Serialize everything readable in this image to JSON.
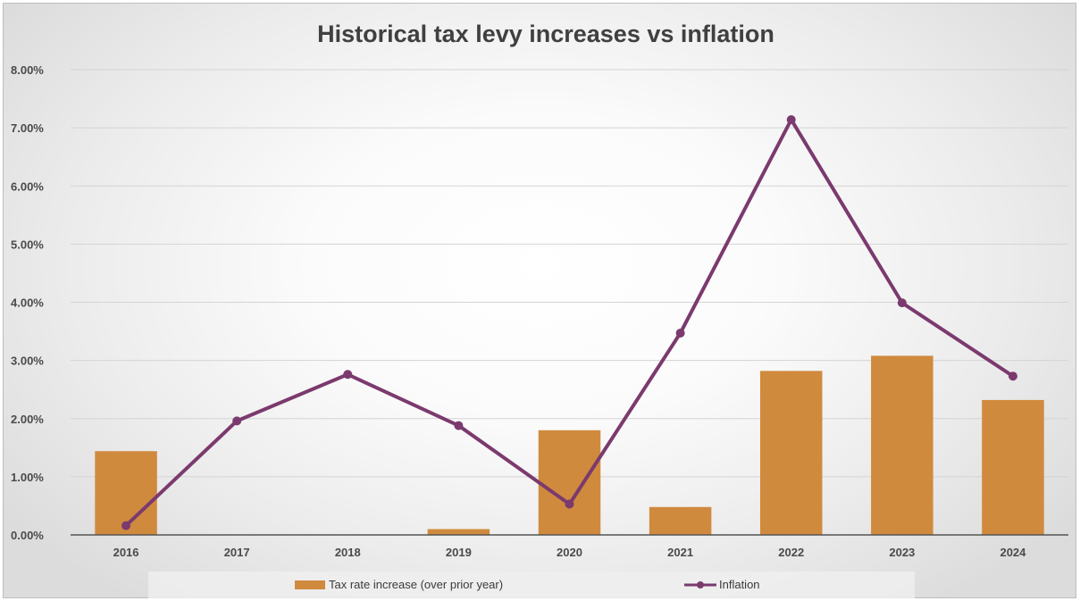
{
  "chart_data": {
    "type": "bar",
    "title": "Historical tax levy increases vs inflation",
    "categories": [
      "2016",
      "2017",
      "2018",
      "2019",
      "2020",
      "2021",
      "2022",
      "2023",
      "2024"
    ],
    "series": [
      {
        "name": "Tax rate increase (over prior year)",
        "type": "bar",
        "color": "#d08a3e",
        "values": [
          1.44,
          0,
          0,
          0.1,
          1.8,
          0.48,
          2.82,
          3.08,
          2.32
        ]
      },
      {
        "name": "Inflation",
        "type": "line",
        "color": "#7b3a6e",
        "values": [
          0.16,
          1.96,
          2.76,
          1.88,
          0.53,
          3.47,
          7.14,
          3.99,
          2.73
        ]
      }
    ],
    "ylim": [
      0,
      8
    ],
    "yticks": [
      0,
      1,
      2,
      3,
      4,
      5,
      6,
      7,
      8
    ],
    "ytick_labels": [
      "0.00%",
      "1.00%",
      "2.00%",
      "3.00%",
      "4.00%",
      "5.00%",
      "6.00%",
      "7.00%",
      "8.00%"
    ],
    "grid": true,
    "legend_position": "bottom"
  }
}
